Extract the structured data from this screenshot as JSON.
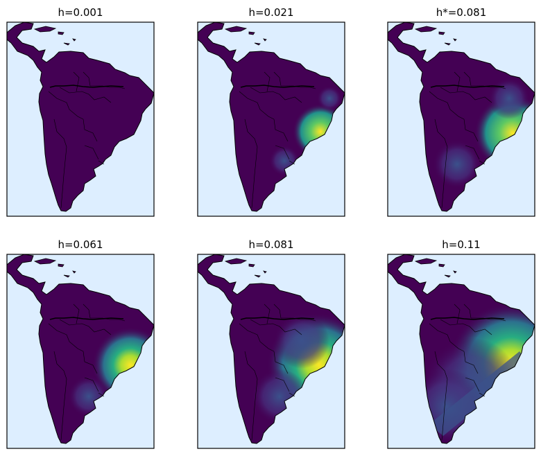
{
  "colors": {
    "ocean": "#ddeeff",
    "land_low": "#440154",
    "viridis": [
      "#46317e",
      "#3b518b",
      "#2c718e",
      "#21918c",
      "#27ad81",
      "#5cc863",
      "#aadc32",
      "#fde725"
    ],
    "border": "#000000",
    "frame": "#000000"
  },
  "chart_data": [
    {
      "type": "heatmap",
      "title": "h=0.001",
      "grid": false,
      "legend": "none"
    },
    {
      "type": "heatmap",
      "title": "h=0.021",
      "grid": false,
      "legend": "none"
    },
    {
      "type": "heatmap",
      "title": "h*=0.081",
      "grid": false,
      "legend": "none"
    },
    {
      "type": "heatmap",
      "title": "h=0.061",
      "grid": false,
      "legend": "none"
    },
    {
      "type": "heatmap",
      "title": "h=0.081",
      "grid": false,
      "legend": "none"
    },
    {
      "type": "heatmap",
      "title": "h=0.11",
      "grid": false,
      "legend": "none"
    }
  ]
}
